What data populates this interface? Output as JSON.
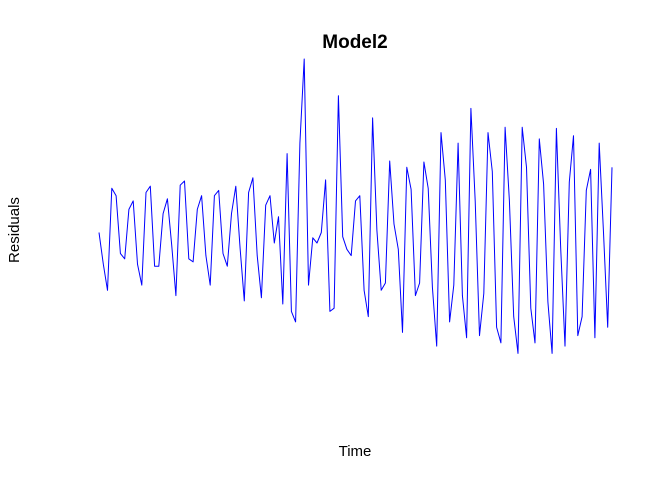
{
  "chart_data": {
    "type": "line",
    "title": "Model2",
    "xlabel": "Time",
    "ylabel": "Residuals",
    "axes_shown": false,
    "grid": false,
    "xlim": [
      1,
      121
    ],
    "ylim": [
      -1.45,
      1.45
    ],
    "series": [
      {
        "color": "#0000FF",
        "x": [
          1,
          2,
          3,
          4,
          5,
          6,
          7,
          8,
          9,
          10,
          11,
          12,
          13,
          14,
          15,
          16,
          17,
          18,
          19,
          20,
          21,
          22,
          23,
          24,
          25,
          26,
          27,
          28,
          29,
          30,
          31,
          32,
          33,
          34,
          35,
          36,
          37,
          38,
          39,
          40,
          41,
          42,
          43,
          44,
          45,
          46,
          47,
          48,
          49,
          50,
          51,
          52,
          53,
          54,
          55,
          56,
          57,
          58,
          59,
          60,
          61,
          62,
          63,
          64,
          65,
          66,
          67,
          68,
          69,
          70,
          71,
          72,
          73,
          74,
          75,
          76,
          77,
          78,
          79,
          80,
          81,
          82,
          83,
          84,
          85,
          86,
          87,
          88,
          89,
          90,
          91,
          92,
          93,
          94,
          95,
          96,
          97,
          98,
          99,
          100,
          101,
          102,
          103,
          104,
          105,
          106,
          107,
          108,
          109,
          110,
          111,
          112,
          113,
          114,
          115,
          116,
          117,
          118,
          119,
          120,
          121
        ],
        "values": [
          0.0,
          -0.3,
          -0.55,
          0.42,
          0.35,
          -0.2,
          -0.25,
          0.22,
          0.3,
          -0.3,
          -0.5,
          0.38,
          0.44,
          -0.32,
          -0.32,
          0.18,
          0.32,
          -0.12,
          -0.6,
          0.45,
          0.49,
          -0.25,
          -0.28,
          0.22,
          0.35,
          -0.22,
          -0.5,
          0.35,
          0.4,
          -0.2,
          -0.32,
          0.18,
          0.44,
          -0.15,
          -0.65,
          0.38,
          0.52,
          -0.22,
          -0.62,
          0.26,
          0.35,
          -0.1,
          0.15,
          -0.68,
          0.75,
          -0.75,
          -0.85,
          0.85,
          1.65,
          -0.5,
          -0.05,
          -0.1,
          0.0,
          0.5,
          -0.75,
          -0.72,
          1.3,
          -0.04,
          -0.16,
          -0.22,
          0.3,
          0.35,
          -0.55,
          -0.8,
          1.09,
          0.02,
          -0.55,
          -0.48,
          0.68,
          0.08,
          -0.16,
          -0.95,
          0.62,
          0.41,
          -0.6,
          -0.48,
          0.67,
          0.42,
          -0.52,
          -1.08,
          0.95,
          0.5,
          -0.85,
          -0.5,
          0.85,
          -0.6,
          -1.0,
          1.18,
          0.3,
          -0.98,
          -0.58,
          0.95,
          0.58,
          -0.9,
          -1.05,
          1.0,
          0.3,
          -0.8,
          -1.15,
          1.0,
          0.62,
          -0.72,
          -1.05,
          0.89,
          0.46,
          -0.66,
          -1.15,
          0.99,
          -0.15,
          -1.08,
          0.48,
          0.92,
          -0.98,
          -0.8,
          0.4,
          0.6,
          -1.0,
          0.85,
          0.0,
          -0.9,
          0.62
        ]
      }
    ]
  }
}
